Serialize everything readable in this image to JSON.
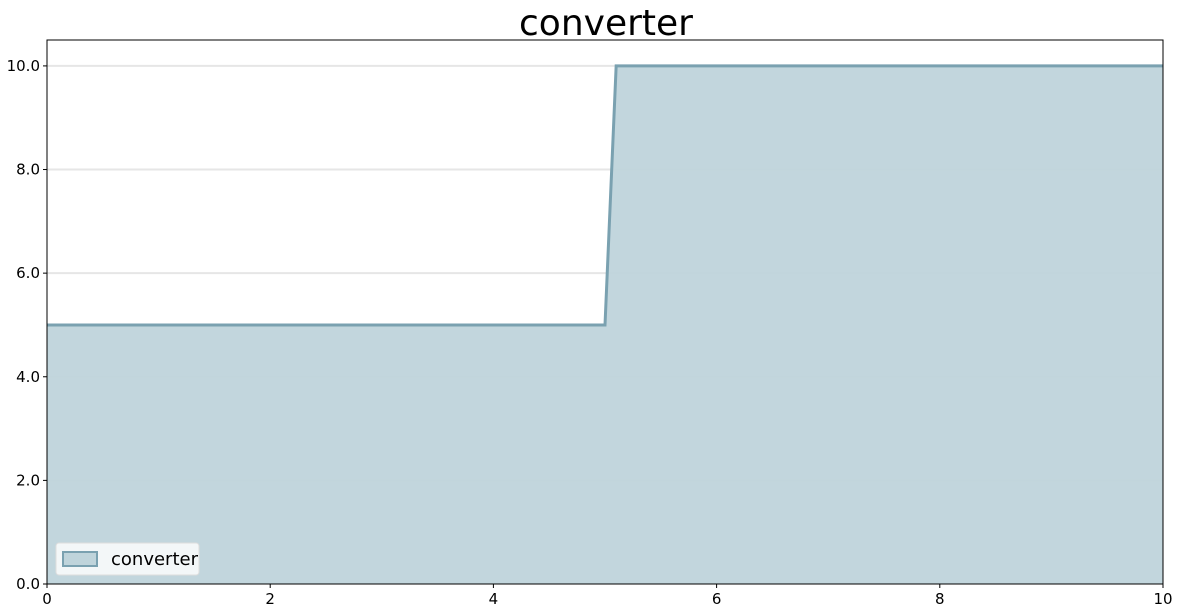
{
  "chart_data": {
    "type": "area",
    "title": "converter",
    "xlabel": "",
    "ylabel": "",
    "xlim": [
      0,
      10
    ],
    "ylim": [
      0,
      10.5
    ],
    "x_ticks": [
      0,
      2,
      4,
      6,
      8,
      10
    ],
    "x_tick_labels": [
      "0",
      "2",
      "4",
      "6",
      "8",
      "10"
    ],
    "y_ticks": [
      0,
      2,
      4,
      6,
      8,
      10
    ],
    "y_tick_labels": [
      "0.0",
      "2.0",
      "4.0",
      "6.0",
      "8.0",
      "10.0"
    ],
    "grid": "horizontal",
    "legend_position": "lower-left",
    "series": [
      {
        "name": "converter",
        "x": [
          0,
          5,
          5.1,
          10
        ],
        "y": [
          5,
          5,
          10,
          10
        ],
        "fill_color": "#bfd4db",
        "line_color": "#7aa1b0"
      }
    ]
  }
}
